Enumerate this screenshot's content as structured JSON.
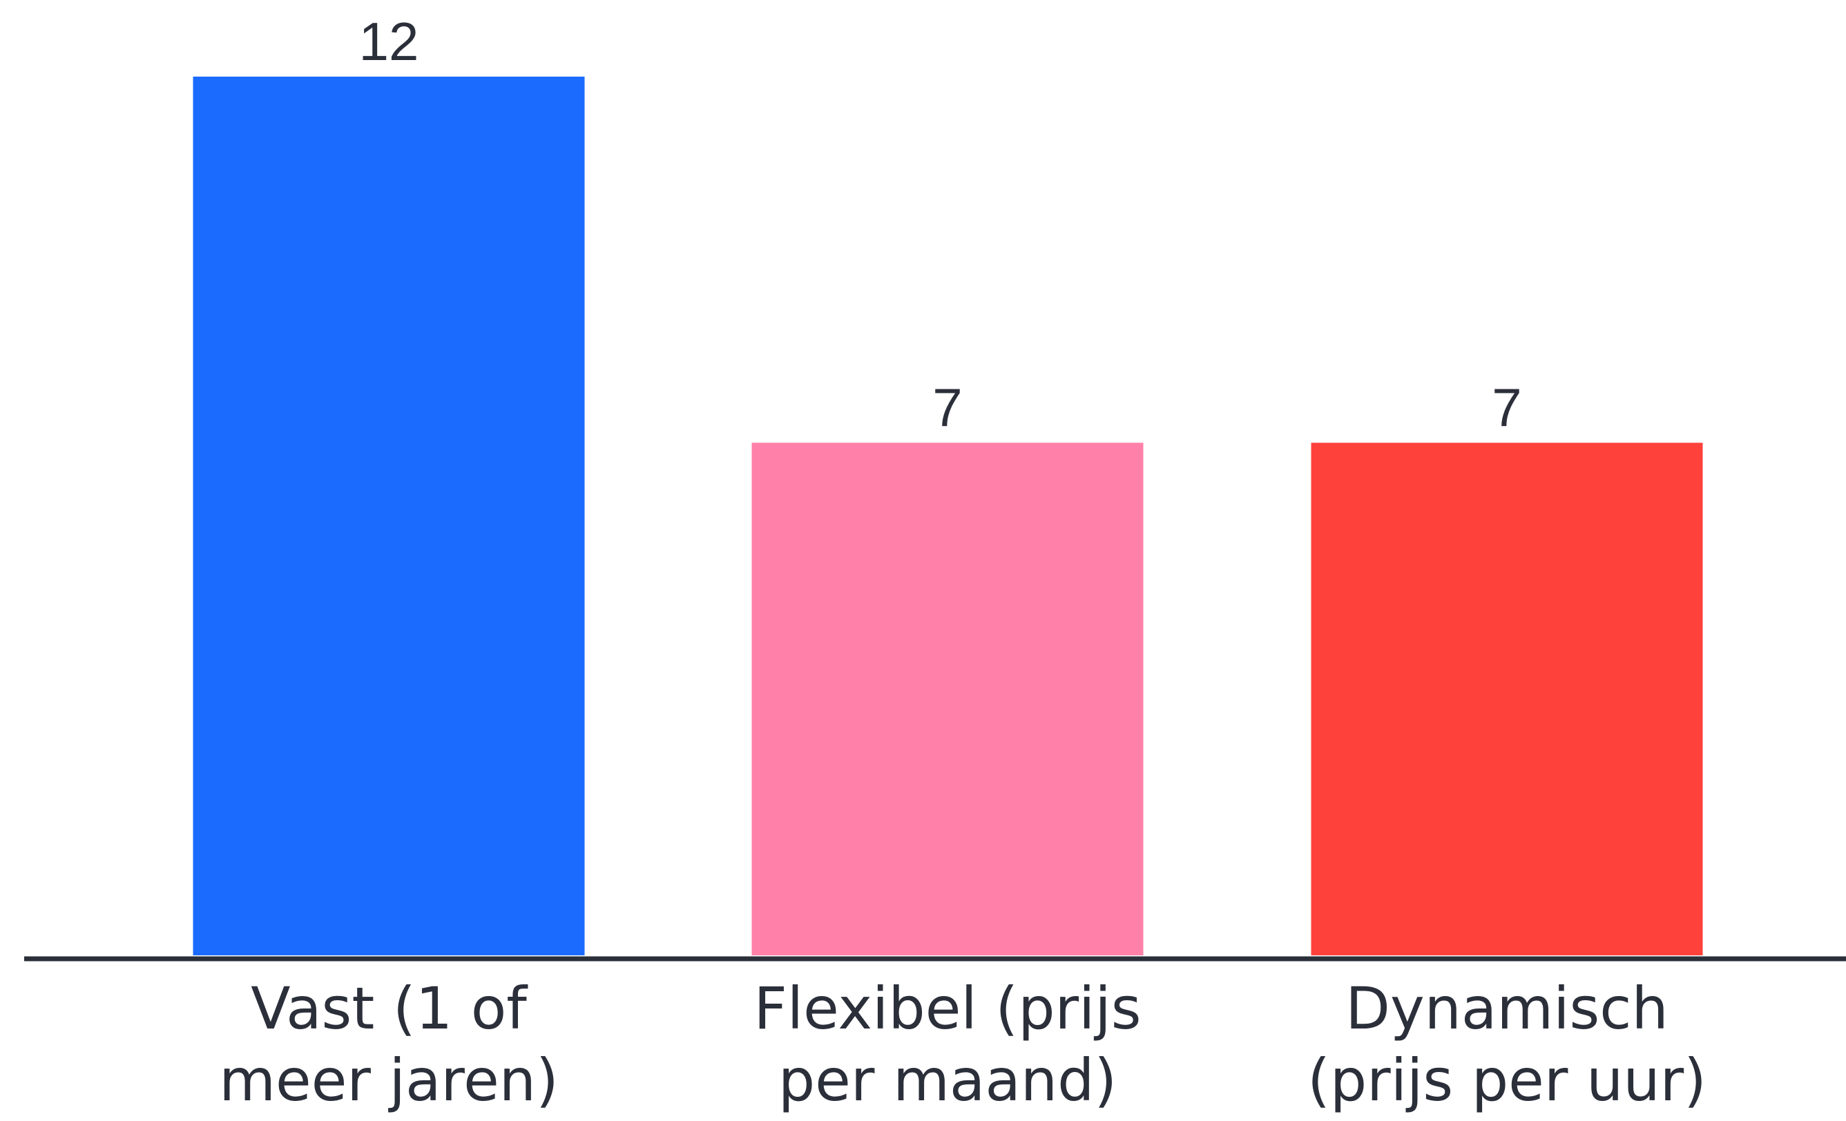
{
  "chart_data": {
    "type": "bar",
    "categories": [
      [
        "Vast (1 of",
        "meer jaren)"
      ],
      [
        "Flexibel (prijs",
        "per maand)"
      ],
      [
        "Dynamisch",
        "(prijs per uur)"
      ]
    ],
    "values": [
      12,
      7,
      7
    ],
    "colors": [
      "#1c6bff",
      "#ff80a8",
      "#ff413c"
    ],
    "value_labels": [
      "12",
      "7",
      "7"
    ],
    "title": "",
    "xlabel": "",
    "ylabel": "",
    "ylim": [
      0,
      12
    ],
    "grid": false,
    "legend": "none",
    "baseline_color": "#2b2f3a",
    "label_color": "#2b2f3a"
  }
}
